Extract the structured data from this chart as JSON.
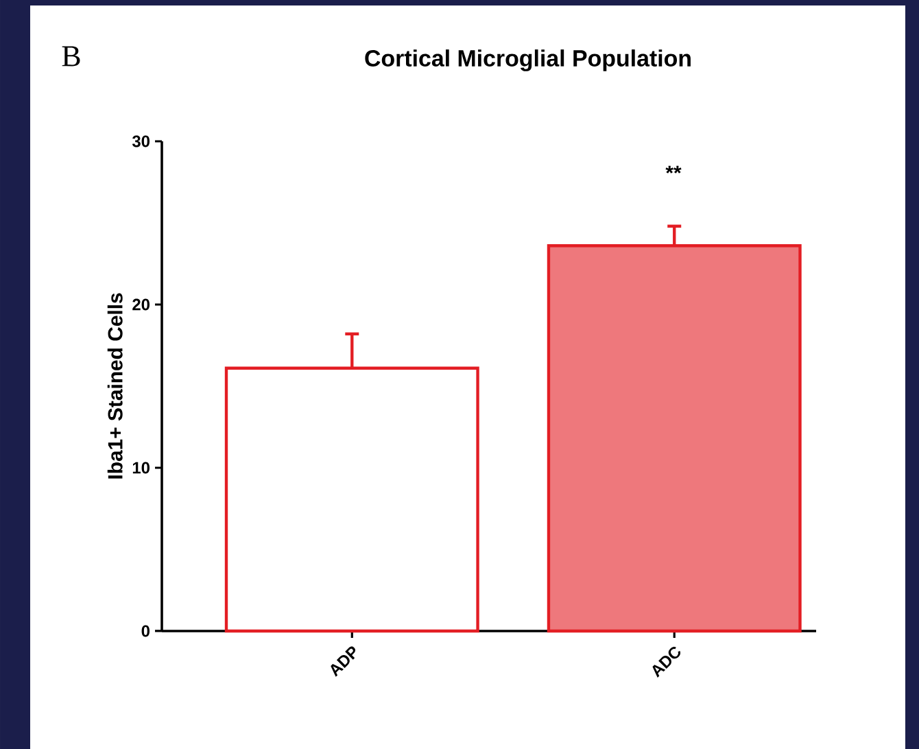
{
  "chart_data": {
    "type": "bar",
    "title": "Cortical Microglial Population",
    "ylabel": "Iba1+ Stained Cells",
    "categories": [
      "ADP",
      "ADC"
    ],
    "series": [
      {
        "color": "#e31e24",
        "values": [
          16.1,
          23.6
        ],
        "errors": [
          2.1,
          1.2
        ]
      }
    ],
    "ylim": [
      0,
      30
    ],
    "yticks": [
      0,
      10,
      20,
      30
    ],
    "annotations": [
      "B",
      "**"
    ]
  }
}
